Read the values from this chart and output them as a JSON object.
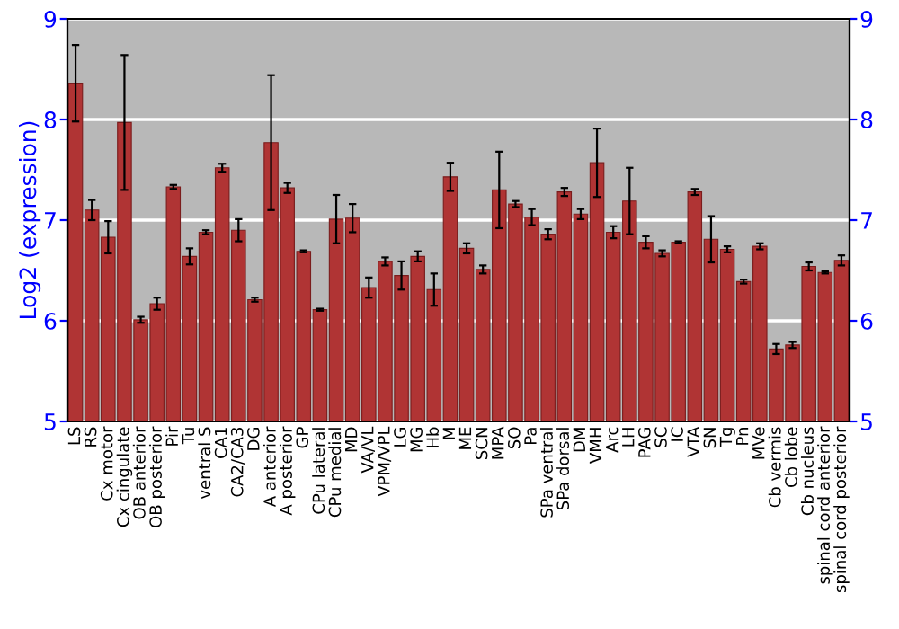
{
  "chart_data": {
    "type": "bar",
    "ylabel": "Log2 (expression)",
    "categories": [
      "LS",
      "RS",
      "Cx motor",
      "Cx cingulate",
      "OB anterior",
      "OB posterior",
      "Pir",
      "Tu",
      "ventral S",
      "CA1",
      "CA2/CA3",
      "DG",
      "A anterior",
      "A posterior",
      "GP",
      "CPu lateral",
      "CPu medial",
      "MD",
      "VA/VL",
      "VPM/VPL",
      "LG",
      "MG",
      "Hb",
      "M",
      "ME",
      "SCN",
      "MPA",
      "SO",
      "Pa",
      "SPa ventral",
      "SPa dorsal",
      "DM",
      "VMH",
      "Arc",
      "LH",
      "PAG",
      "SC",
      "IC",
      "VTA",
      "SN",
      "Tg",
      "Pn",
      "MVe",
      "Cb vermis",
      "Cb lobe",
      "Cb nucleus",
      "spinal cord anterior",
      "spinal cord posterior"
    ],
    "values": [
      8.36,
      7.1,
      6.83,
      7.97,
      6.01,
      6.17,
      7.33,
      6.64,
      6.88,
      7.52,
      6.9,
      6.21,
      7.77,
      7.32,
      6.69,
      6.11,
      7.01,
      7.02,
      6.33,
      6.59,
      6.45,
      6.64,
      6.31,
      7.43,
      6.72,
      6.51,
      7.3,
      7.16,
      7.03,
      6.86,
      7.28,
      7.06,
      7.57,
      6.88,
      7.19,
      6.78,
      6.67,
      6.78,
      7.28,
      6.81,
      6.71,
      6.39,
      6.74,
      5.72,
      5.76,
      6.54,
      6.48,
      6.6
    ],
    "errors": [
      0.38,
      0.1,
      0.16,
      0.67,
      0.03,
      0.06,
      0.02,
      0.08,
      0.02,
      0.04,
      0.11,
      0.02,
      0.67,
      0.05,
      0.01,
      0.01,
      0.24,
      0.14,
      0.1,
      0.04,
      0.14,
      0.05,
      0.16,
      0.14,
      0.05,
      0.04,
      0.38,
      0.03,
      0.08,
      0.05,
      0.04,
      0.05,
      0.34,
      0.06,
      0.33,
      0.06,
      0.03,
      0.01,
      0.03,
      0.23,
      0.03,
      0.02,
      0.03,
      0.05,
      0.03,
      0.04,
      0.01,
      0.05
    ],
    "color": "#b03434",
    "ylim": [
      5,
      9
    ],
    "yticks": [
      5,
      6,
      7,
      8,
      9
    ],
    "y2lim": [
      5,
      9
    ],
    "y2ticks": [
      5,
      6,
      7,
      8,
      9
    ],
    "grid": "y"
  }
}
